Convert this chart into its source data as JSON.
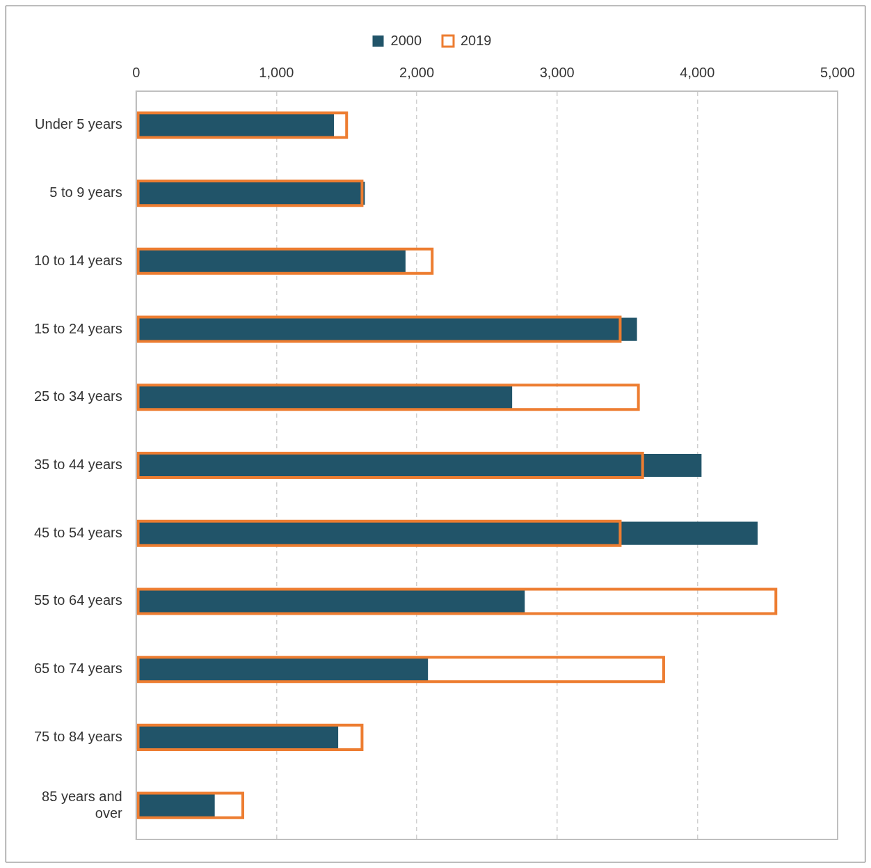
{
  "chart_data": {
    "type": "bar",
    "orientation": "horizontal",
    "categories": [
      "Under 5 years",
      "5 to 9 years",
      "10 to 14 years",
      "15 to 24 years",
      "25 to 34 years",
      "35 to 44 years",
      "45 to 54 years",
      "55 to 64 years",
      "65 to 74 years",
      "75 to 84 years",
      "85 years and over"
    ],
    "series": [
      {
        "name": "2000",
        "color": "#215469",
        "values": [
          1410,
          1630,
          1920,
          3570,
          2680,
          4030,
          4430,
          2770,
          2080,
          1440,
          560
        ]
      },
      {
        "name": "2019",
        "color": "#ed7d31",
        "values": [
          1510,
          1620,
          2120,
          3460,
          3590,
          3620,
          3460,
          4570,
          3770,
          1620,
          770
        ]
      }
    ],
    "xlim": [
      0,
      5000
    ],
    "xticks": [
      {
        "value": 0,
        "label": "0"
      },
      {
        "value": 1000,
        "label": "1,000"
      },
      {
        "value": 2000,
        "label": "2,000"
      },
      {
        "value": 3000,
        "label": "3,000"
      },
      {
        "value": 4000,
        "label": "4,000"
      },
      {
        "value": 5000,
        "label": "5,000"
      }
    ],
    "grid": "x",
    "legend": "top"
  }
}
